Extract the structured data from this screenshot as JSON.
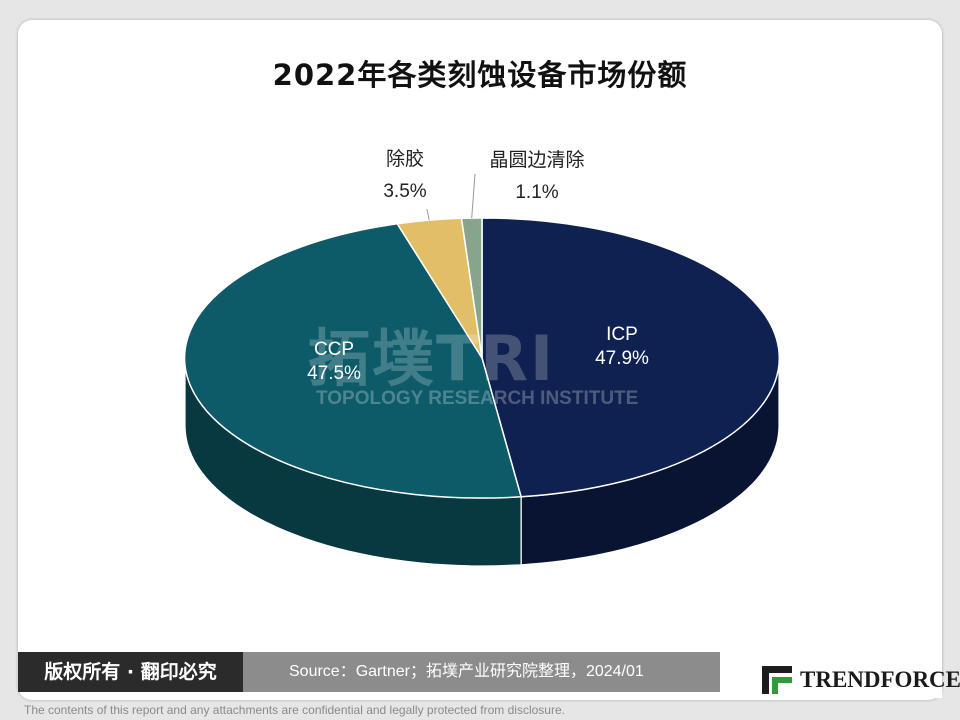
{
  "header": {
    "title": "2022年各类刻蚀设备市场份额"
  },
  "chart_data": {
    "type": "pie",
    "title": "2022年各类刻蚀设备市场份额",
    "categories": [
      "ICP",
      "CCP",
      "除胶",
      "晶圆边清除"
    ],
    "values": [
      47.9,
      47.5,
      3.5,
      1.1
    ],
    "value_labels": [
      "47.9%",
      "47.5%",
      "3.5%",
      "1.1%"
    ],
    "unit": "%",
    "style": "3d-pie",
    "colors": {
      "ICP": "#0f2150",
      "CCP": "#0d5a68",
      "除胶": "#e2bf67",
      "晶圆边清除": "#87a48c"
    }
  },
  "watermark": {
    "main": "拓墣TRI",
    "sub": "TOPOLOGY RESEARCH INSTITUTE"
  },
  "footer": {
    "copyright": "版权所有 · 翻印必究",
    "source": "Source：Gartner；拓墣产业研究院整理，2024/01",
    "logo_text": "TRENDFORCE",
    "disclaimer": "The contents of this report and any attachments are confidential and legally protected from disclosure."
  }
}
